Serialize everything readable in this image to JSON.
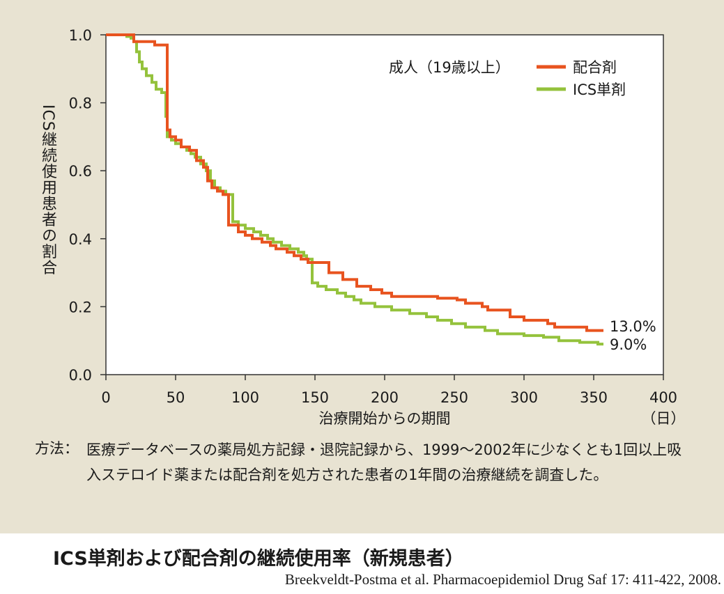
{
  "chart_data": {
    "type": "line",
    "subtitle": "成人（19歳以上）",
    "xlabel": "治療開始からの期間",
    "xunit": "（日）",
    "ylabel": "ICS継続使用患者の割合",
    "xlim": [
      0,
      400
    ],
    "ylim": [
      0,
      1
    ],
    "xticks": [
      "0",
      "50",
      "100",
      "150",
      "200",
      "250",
      "300",
      "350",
      "400"
    ],
    "yticks": [
      "0.0",
      "0.2",
      "0.4",
      "0.6",
      "0.8",
      "1.0"
    ],
    "grid": false,
    "legend_position": "top-right",
    "series": [
      {
        "name": "配合剤",
        "color": "#e8531f",
        "end_label": "13.0%",
        "values": [
          [
            0,
            1.0
          ],
          [
            20,
            1.0
          ],
          [
            20,
            0.98
          ],
          [
            35,
            0.98
          ],
          [
            35,
            0.97
          ],
          [
            44,
            0.97
          ],
          [
            44,
            0.72
          ],
          [
            46,
            0.72
          ],
          [
            46,
            0.7
          ],
          [
            50,
            0.7
          ],
          [
            50,
            0.69
          ],
          [
            54,
            0.69
          ],
          [
            54,
            0.67
          ],
          [
            60,
            0.67
          ],
          [
            60,
            0.66
          ],
          [
            65,
            0.66
          ],
          [
            65,
            0.63
          ],
          [
            70,
            0.63
          ],
          [
            70,
            0.61
          ],
          [
            73,
            0.61
          ],
          [
            73,
            0.57
          ],
          [
            76,
            0.57
          ],
          [
            76,
            0.55
          ],
          [
            80,
            0.55
          ],
          [
            80,
            0.54
          ],
          [
            84,
            0.54
          ],
          [
            84,
            0.53
          ],
          [
            88,
            0.53
          ],
          [
            88,
            0.44
          ],
          [
            95,
            0.44
          ],
          [
            95,
            0.42
          ],
          [
            100,
            0.42
          ],
          [
            100,
            0.41
          ],
          [
            105,
            0.41
          ],
          [
            105,
            0.4
          ],
          [
            112,
            0.4
          ],
          [
            112,
            0.39
          ],
          [
            118,
            0.39
          ],
          [
            118,
            0.38
          ],
          [
            122,
            0.38
          ],
          [
            122,
            0.37
          ],
          [
            130,
            0.37
          ],
          [
            130,
            0.36
          ],
          [
            135,
            0.36
          ],
          [
            135,
            0.35
          ],
          [
            140,
            0.35
          ],
          [
            140,
            0.34
          ],
          [
            145,
            0.34
          ],
          [
            145,
            0.33
          ],
          [
            160,
            0.33
          ],
          [
            160,
            0.3
          ],
          [
            170,
            0.3
          ],
          [
            170,
            0.28
          ],
          [
            180,
            0.28
          ],
          [
            180,
            0.26
          ],
          [
            190,
            0.26
          ],
          [
            190,
            0.25
          ],
          [
            198,
            0.25
          ],
          [
            198,
            0.24
          ],
          [
            205,
            0.24
          ],
          [
            205,
            0.23
          ],
          [
            238,
            0.23
          ],
          [
            238,
            0.225
          ],
          [
            252,
            0.225
          ],
          [
            252,
            0.22
          ],
          [
            258,
            0.22
          ],
          [
            258,
            0.21
          ],
          [
            270,
            0.21
          ],
          [
            270,
            0.2
          ],
          [
            274,
            0.2
          ],
          [
            274,
            0.19
          ],
          [
            290,
            0.19
          ],
          [
            290,
            0.17
          ],
          [
            300,
            0.17
          ],
          [
            300,
            0.16
          ],
          [
            317,
            0.16
          ],
          [
            317,
            0.15
          ],
          [
            322,
            0.15
          ],
          [
            322,
            0.14
          ],
          [
            345,
            0.14
          ],
          [
            345,
            0.13
          ],
          [
            357,
            0.13
          ]
        ]
      },
      {
        "name": "ICS単剤",
        "color": "#94c23c",
        "end_label": "9.0%",
        "values": [
          [
            0,
            1.0
          ],
          [
            15,
            1.0
          ],
          [
            15,
            0.995
          ],
          [
            18,
            0.995
          ],
          [
            18,
            0.99
          ],
          [
            20,
            0.99
          ],
          [
            20,
            0.98
          ],
          [
            22,
            0.98
          ],
          [
            22,
            0.95
          ],
          [
            24,
            0.95
          ],
          [
            24,
            0.92
          ],
          [
            26,
            0.92
          ],
          [
            26,
            0.9
          ],
          [
            29,
            0.9
          ],
          [
            29,
            0.88
          ],
          [
            33,
            0.88
          ],
          [
            33,
            0.86
          ],
          [
            36,
            0.86
          ],
          [
            36,
            0.84
          ],
          [
            40,
            0.84
          ],
          [
            40,
            0.83
          ],
          [
            43,
            0.83
          ],
          [
            43,
            0.76
          ],
          [
            44,
            0.76
          ],
          [
            44,
            0.7
          ],
          [
            47,
            0.7
          ],
          [
            47,
            0.69
          ],
          [
            50,
            0.69
          ],
          [
            50,
            0.68
          ],
          [
            54,
            0.68
          ],
          [
            54,
            0.67
          ],
          [
            58,
            0.67
          ],
          [
            58,
            0.66
          ],
          [
            61,
            0.66
          ],
          [
            61,
            0.65
          ],
          [
            64,
            0.65
          ],
          [
            64,
            0.64
          ],
          [
            68,
            0.64
          ],
          [
            68,
            0.62
          ],
          [
            72,
            0.62
          ],
          [
            72,
            0.6
          ],
          [
            75,
            0.6
          ],
          [
            75,
            0.57
          ],
          [
            78,
            0.57
          ],
          [
            78,
            0.55
          ],
          [
            82,
            0.55
          ],
          [
            82,
            0.54
          ],
          [
            86,
            0.54
          ],
          [
            86,
            0.53
          ],
          [
            91,
            0.53
          ],
          [
            91,
            0.45
          ],
          [
            95,
            0.45
          ],
          [
            95,
            0.44
          ],
          [
            100,
            0.44
          ],
          [
            100,
            0.43
          ],
          [
            106,
            0.43
          ],
          [
            106,
            0.42
          ],
          [
            111,
            0.42
          ],
          [
            111,
            0.41
          ],
          [
            116,
            0.41
          ],
          [
            116,
            0.4
          ],
          [
            120,
            0.4
          ],
          [
            120,
            0.39
          ],
          [
            126,
            0.39
          ],
          [
            126,
            0.38
          ],
          [
            132,
            0.38
          ],
          [
            132,
            0.37
          ],
          [
            138,
            0.37
          ],
          [
            138,
            0.36
          ],
          [
            142,
            0.36
          ],
          [
            142,
            0.35
          ],
          [
            144,
            0.35
          ],
          [
            144,
            0.34
          ],
          [
            148,
            0.34
          ],
          [
            148,
            0.27
          ],
          [
            152,
            0.27
          ],
          [
            152,
            0.26
          ],
          [
            158,
            0.26
          ],
          [
            158,
            0.25
          ],
          [
            166,
            0.25
          ],
          [
            166,
            0.24
          ],
          [
            172,
            0.24
          ],
          [
            172,
            0.23
          ],
          [
            178,
            0.23
          ],
          [
            178,
            0.22
          ],
          [
            183,
            0.22
          ],
          [
            183,
            0.21
          ],
          [
            193,
            0.21
          ],
          [
            193,
            0.2
          ],
          [
            205,
            0.2
          ],
          [
            205,
            0.19
          ],
          [
            218,
            0.19
          ],
          [
            218,
            0.18
          ],
          [
            230,
            0.18
          ],
          [
            230,
            0.17
          ],
          [
            238,
            0.17
          ],
          [
            238,
            0.16
          ],
          [
            248,
            0.16
          ],
          [
            248,
            0.15
          ],
          [
            258,
            0.15
          ],
          [
            258,
            0.14
          ],
          [
            272,
            0.14
          ],
          [
            272,
            0.13
          ],
          [
            281,
            0.13
          ],
          [
            281,
            0.12
          ],
          [
            300,
            0.12
          ],
          [
            300,
            0.115
          ],
          [
            314,
            0.115
          ],
          [
            314,
            0.11
          ],
          [
            325,
            0.11
          ],
          [
            325,
            0.1
          ],
          [
            340,
            0.1
          ],
          [
            340,
            0.095
          ],
          [
            353,
            0.095
          ],
          [
            353,
            0.09
          ],
          [
            357,
            0.09
          ]
        ]
      }
    ]
  },
  "method": {
    "label": "方法：",
    "text": "医療データベースの薬局処方記録・退院記録から、1999～2002年に少なくとも1回以上吸入ステロイド薬または配合剤を処方された患者の1年間の治療継続を調査した。"
  },
  "caption": {
    "title": "ICS単剤および配合剤の継続使用率（新規患者）",
    "source": "Breekveldt-Postma et al. Pharmacoepidemiol Drug Saf 17: 411-422, 2008."
  }
}
